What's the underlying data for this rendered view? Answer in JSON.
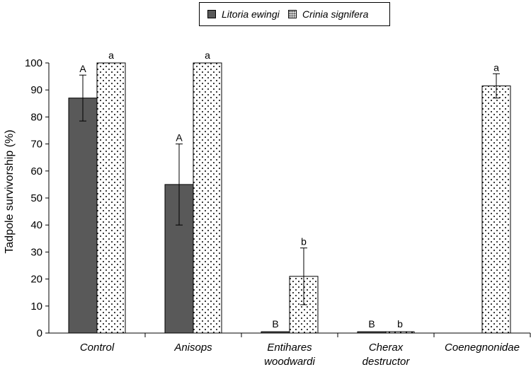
{
  "chart_data": {
    "type": "bar",
    "title": "",
    "xlabel": "",
    "ylabel": "Tadpole survivorship (%)",
    "ylim": [
      0,
      100
    ],
    "yticks": [
      0,
      10,
      20,
      30,
      40,
      50,
      60,
      70,
      80,
      90,
      100
    ],
    "categories": [
      [
        "Control"
      ],
      [
        "Anisops"
      ],
      [
        "Entihares",
        "woodwardi"
      ],
      [
        "Cherax",
        "destructor"
      ],
      [
        "Coenegnonidae"
      ]
    ],
    "legend_position": "top-center",
    "series": [
      {
        "name": "Litoria ewingi",
        "color": "#595959",
        "pattern": "solid",
        "values": [
          87,
          55,
          0.5,
          0.5,
          null
        ],
        "errors": [
          8.5,
          15,
          null,
          null,
          null
        ],
        "labels": [
          "A",
          "A",
          "B",
          "B",
          ""
        ]
      },
      {
        "name": "Crinia signifera",
        "color": "#ffffff",
        "pattern": "dots",
        "values": [
          100,
          100,
          21,
          0.5,
          91.5
        ],
        "errors": [
          null,
          null,
          10.5,
          null,
          4.5
        ],
        "labels": [
          "a",
          "a",
          "b",
          "b",
          "a"
        ]
      }
    ]
  }
}
